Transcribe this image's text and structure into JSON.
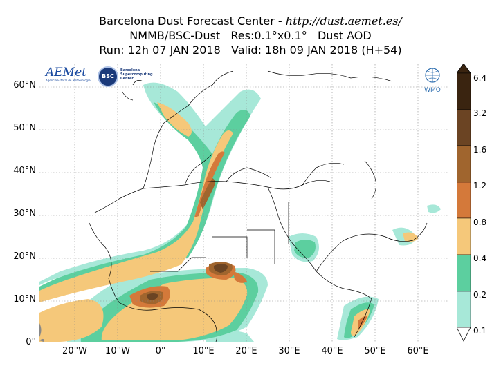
{
  "header": {
    "line1_prefix": "Barcelona Dust Forecast Center - ",
    "line1_url": "http://dust.aemet.es/",
    "line2": "NMMB/BSC-Dust   Res:0.1°x0.1°   Dust AOD",
    "line3": "Run: 12h 07 JAN 2018   Valid: 18h 09 JAN 2018 (H+54)"
  },
  "map": {
    "lat_labels": [
      "60°N",
      "50°N",
      "40°N",
      "30°N",
      "20°N",
      "10°N",
      "0°"
    ],
    "lon_labels": [
      "20°W",
      "10°W",
      "0°",
      "10°E",
      "20°E",
      "30°E",
      "40°E",
      "50°E",
      "60°E"
    ]
  },
  "colorbar": {
    "levels": [
      "6.4",
      "3.2",
      "1.6",
      "1.2",
      "0.8",
      "0.4",
      "0.2",
      "0.1"
    ],
    "colors": [
      "#3a2410",
      "#6b4423",
      "#a0652e",
      "#d4793a",
      "#f5c87a",
      "#5ccf9f",
      "#a7e8d8"
    ]
  },
  "logos": {
    "aemet": "AEMet",
    "aemet_sub": "Agencia Estatal de Meteorología",
    "bsc": "BSC",
    "bsc_text": "Barcelona Supercomputing Center",
    "wmo": "WMO"
  }
}
